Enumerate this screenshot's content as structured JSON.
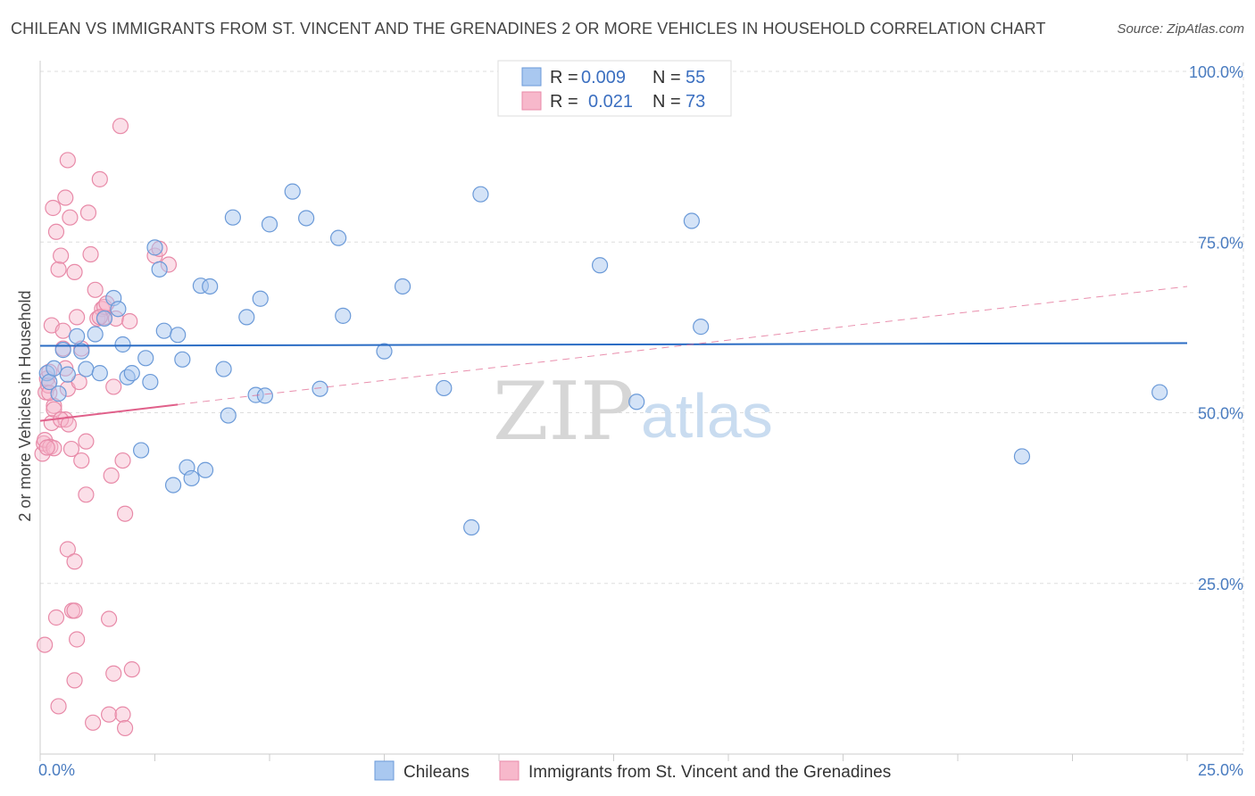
{
  "title": "CHILEAN VS IMMIGRANTS FROM ST. VINCENT AND THE GRENADINES 2 OR MORE VEHICLES IN HOUSEHOLD CORRELATION CHART",
  "source": "Source: ZipAtlas.com",
  "watermark": {
    "zip": "ZIP",
    "atlas": "atlas"
  },
  "colors": {
    "blue": "#a9c8f0",
    "blue_stroke": "#6b9ad8",
    "blue_line": "#2a6cc4",
    "pink": "#f7b8cb",
    "pink_stroke": "#e88aa8",
    "pink_line": "#e0608a",
    "grid": "#dddddd"
  },
  "legend": {
    "rows": [
      {
        "r_label": "R = ",
        "r_value": "0.009",
        "n_label": "N = ",
        "n_value": "55"
      },
      {
        "r_label": "R = ",
        "r_value": "0.021",
        "n_label": "N = ",
        "n_value": "73"
      }
    ]
  },
  "bottom_legend": [
    "Chileans",
    "Immigrants from St. Vincent and the Grenadines"
  ],
  "chart_data": {
    "type": "scatter",
    "xlabel": "",
    "ylabel": "2 or more Vehicles in Household",
    "xlim": [
      0,
      25
    ],
    "ylim": [
      0,
      100
    ],
    "x_tick_labels": [
      "0.0%",
      "25.0%"
    ],
    "y_tick_labels": [
      "100.0%",
      "75.0%",
      "50.0%",
      "25.0%"
    ],
    "y_tick_values": [
      100,
      75,
      50,
      25
    ],
    "grid": true,
    "series": [
      {
        "name": "Chileans",
        "trend": {
          "x": [
            0,
            25
          ],
          "y": [
            59.8,
            60.2
          ],
          "dashed": false
        },
        "points": [
          [
            0.15,
            55.8
          ],
          [
            0.2,
            54.5
          ],
          [
            0.3,
            56.5
          ],
          [
            0.4,
            52.8
          ],
          [
            0.5,
            59.2
          ],
          [
            0.6,
            55.6
          ],
          [
            0.8,
            61.2
          ],
          [
            0.9,
            59
          ],
          [
            1,
            56.4
          ],
          [
            1.2,
            61.5
          ],
          [
            1.3,
            55.8
          ],
          [
            1.4,
            63.8
          ],
          [
            1.6,
            66.8
          ],
          [
            1.7,
            65.2
          ],
          [
            1.8,
            60
          ],
          [
            1.9,
            55.2
          ],
          [
            2,
            55.8
          ],
          [
            2.2,
            44.5
          ],
          [
            2.3,
            58
          ],
          [
            2.4,
            54.5
          ],
          [
            2.5,
            74.2
          ],
          [
            2.6,
            71
          ],
          [
            2.7,
            62
          ],
          [
            2.9,
            39.4
          ],
          [
            3,
            61.4
          ],
          [
            3.1,
            57.8
          ],
          [
            3.2,
            42
          ],
          [
            3.3,
            40.4
          ],
          [
            3.5,
            68.6
          ],
          [
            3.6,
            41.6
          ],
          [
            3.7,
            68.5
          ],
          [
            4,
            56.4
          ],
          [
            4.1,
            49.6
          ],
          [
            4.2,
            78.6
          ],
          [
            4.5,
            64
          ],
          [
            4.7,
            52.6
          ],
          [
            4.8,
            66.7
          ],
          [
            4.9,
            52.5
          ],
          [
            5,
            77.6
          ],
          [
            5.5,
            82.4
          ],
          [
            5.8,
            78.5
          ],
          [
            6.1,
            53.5
          ],
          [
            6.5,
            75.6
          ],
          [
            6.6,
            64.2
          ],
          [
            7.5,
            59
          ],
          [
            7.9,
            68.5
          ],
          [
            8.8,
            53.6
          ],
          [
            9.4,
            33.2
          ],
          [
            9.6,
            82
          ],
          [
            12.2,
            71.6
          ],
          [
            13,
            51.6
          ],
          [
            14.2,
            78.1
          ],
          [
            14.4,
            62.6
          ],
          [
            21.4,
            43.6
          ],
          [
            24.4,
            53
          ]
        ]
      },
      {
        "name": "Immigrants from St. Vincent and the Grenadines",
        "trend": {
          "x": [
            0,
            3.0
          ],
          "y": [
            48.8,
            51.2
          ],
          "dashed": false,
          "extension": {
            "x": [
              3.0,
              25
            ],
            "y": [
              51.2,
              68.5
            ]
          }
        },
        "points": [
          [
            0.05,
            44
          ],
          [
            0.08,
            45.5
          ],
          [
            0.1,
            46
          ],
          [
            0.12,
            53
          ],
          [
            0.15,
            55
          ],
          [
            0.18,
            54
          ],
          [
            0.2,
            56
          ],
          [
            0.22,
            45
          ],
          [
            0.25,
            48.5
          ],
          [
            0.25,
            62.8
          ],
          [
            0.28,
            80
          ],
          [
            0.3,
            51
          ],
          [
            0.3,
            50.5
          ],
          [
            0.35,
            76.5
          ],
          [
            0.35,
            20
          ],
          [
            0.4,
            71
          ],
          [
            0.4,
            7
          ],
          [
            0.45,
            73
          ],
          [
            0.5,
            62
          ],
          [
            0.5,
            59.4
          ],
          [
            0.55,
            81.5
          ],
          [
            0.55,
            49
          ],
          [
            0.6,
            87
          ],
          [
            0.6,
            53.5
          ],
          [
            0.6,
            30
          ],
          [
            0.65,
            78.6
          ],
          [
            0.7,
            21
          ],
          [
            0.75,
            70.6
          ],
          [
            0.75,
            28.2
          ],
          [
            0.75,
            10.8
          ],
          [
            0.75,
            21
          ],
          [
            0.8,
            16.8
          ],
          [
            0.8,
            64
          ],
          [
            0.85,
            54.5
          ],
          [
            0.9,
            43
          ],
          [
            1,
            45.8
          ],
          [
            1,
            38
          ],
          [
            1.05,
            79.3
          ],
          [
            1.1,
            73.2
          ],
          [
            1.15,
            4.6
          ],
          [
            1.2,
            68
          ],
          [
            1.25,
            63.8
          ],
          [
            1.3,
            84.2
          ],
          [
            1.35,
            65.2
          ],
          [
            1.4,
            64
          ],
          [
            1.5,
            5.8
          ],
          [
            1.5,
            19.8
          ],
          [
            1.55,
            40.8
          ],
          [
            1.6,
            53.8
          ],
          [
            1.6,
            11.8
          ],
          [
            1.65,
            63.8
          ],
          [
            1.75,
            92
          ],
          [
            1.8,
            5.8
          ],
          [
            1.8,
            43
          ],
          [
            1.85,
            3.8
          ],
          [
            1.85,
            35.2
          ],
          [
            2,
            12.4
          ],
          [
            2.5,
            73
          ],
          [
            2.6,
            74
          ],
          [
            2.8,
            71.7
          ],
          [
            1.4,
            65.5
          ],
          [
            0.2,
            52.9
          ],
          [
            0.3,
            44.8
          ],
          [
            0.45,
            49
          ],
          [
            0.55,
            56.5
          ],
          [
            0.62,
            48.3
          ],
          [
            0.68,
            44.7
          ],
          [
            0.9,
            59.4
          ],
          [
            1.3,
            64
          ],
          [
            1.45,
            66
          ],
          [
            1.95,
            63.4
          ],
          [
            0.1,
            16
          ],
          [
            0.15,
            44.9
          ]
        ]
      }
    ]
  }
}
